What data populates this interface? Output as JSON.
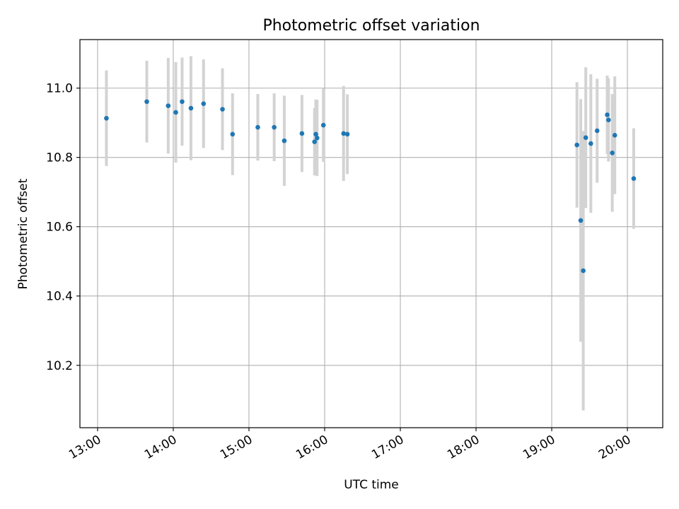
{
  "chart_data": {
    "type": "scatter",
    "title": "Photometric offset variation",
    "xlabel": "UTC time",
    "ylabel": "Photometric offset",
    "x_ticks": [
      "13:00",
      "14:00",
      "15:00",
      "16:00",
      "17:00",
      "18:00",
      "19:00",
      "20:00"
    ],
    "y_ticks": [
      "10.2",
      "10.4",
      "10.6",
      "10.8",
      "11.0"
    ],
    "y_tick_values": [
      10.2,
      10.4,
      10.6,
      10.8,
      11.0
    ],
    "xlim": [
      "12:46",
      "20:28"
    ],
    "ylim": [
      10.02,
      11.14
    ],
    "grid": true,
    "legend": "none",
    "colors": {
      "point": "#1f77b4",
      "errorbar": "#d3d3d3",
      "grid": "#b0b0b0"
    },
    "points": [
      {
        "x": "13:07",
        "y": 10.913,
        "yerr": 0.138
      },
      {
        "x": "13:39",
        "y": 10.961,
        "yerr": 0.118
      },
      {
        "x": "13:56",
        "y": 10.949,
        "yerr": 0.138
      },
      {
        "x": "14:02",
        "y": 10.93,
        "yerr": 0.145
      },
      {
        "x": "14:07",
        "y": 10.961,
        "yerr": 0.127
      },
      {
        "x": "14:14",
        "y": 10.942,
        "yerr": 0.15
      },
      {
        "x": "14:24",
        "y": 10.955,
        "yerr": 0.128
      },
      {
        "x": "14:39",
        "y": 10.939,
        "yerr": 0.118
      },
      {
        "x": "14:47",
        "y": 10.867,
        "yerr": 0.118
      },
      {
        "x": "15:07",
        "y": 10.887,
        "yerr": 0.096
      },
      {
        "x": "15:20",
        "y": 10.887,
        "yerr": 0.098
      },
      {
        "x": "15:28",
        "y": 10.848,
        "yerr": 0.13
      },
      {
        "x": "15:42",
        "y": 10.869,
        "yerr": 0.111
      },
      {
        "x": "15:52",
        "y": 10.845,
        "yerr": 0.097
      },
      {
        "x": "15:53",
        "y": 10.867,
        "yerr": 0.1
      },
      {
        "x": "15:54",
        "y": 10.856,
        "yerr": 0.11
      },
      {
        "x": "15:59",
        "y": 10.893,
        "yerr": 0.106
      },
      {
        "x": "16:15",
        "y": 10.869,
        "yerr": 0.137
      },
      {
        "x": "16:18",
        "y": 10.867,
        "yerr": 0.115
      },
      {
        "x": "19:20",
        "y": 10.836,
        "yerr": 0.181
      },
      {
        "x": "19:23",
        "y": 10.618,
        "yerr": 0.35
      },
      {
        "x": "19:25",
        "y": 10.473,
        "yerr": 0.403
      },
      {
        "x": "19:27",
        "y": 10.857,
        "yerr": 0.203
      },
      {
        "x": "19:31",
        "y": 10.84,
        "yerr": 0.2
      },
      {
        "x": "19:36",
        "y": 10.877,
        "yerr": 0.15
      },
      {
        "x": "19:44",
        "y": 10.923,
        "yerr": 0.113
      },
      {
        "x": "19:45",
        "y": 10.908,
        "yerr": 0.12
      },
      {
        "x": "19:48",
        "y": 10.813,
        "yerr": 0.17
      },
      {
        "x": "19:50",
        "y": 10.864,
        "yerr": 0.17
      },
      {
        "x": "20:05",
        "y": 10.739,
        "yerr": 0.145
      }
    ]
  }
}
